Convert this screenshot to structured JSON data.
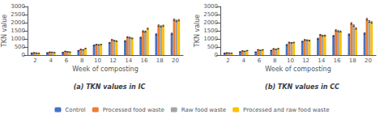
{
  "chart_data": [
    {
      "type": "bar",
      "title": "(a) TKN values in IC",
      "xlabel": "Week of composting",
      "ylabel": "TKN value",
      "categories": [
        "2",
        "4",
        "6",
        "8",
        "10",
        "12",
        "14",
        "16",
        "18",
        "20"
      ],
      "series": [
        {
          "name": "Control",
          "color": "#4472C4",
          "values": [
            120,
            140,
            160,
            270,
            600,
            760,
            870,
            1080,
            1280,
            1320
          ],
          "errors": [
            8,
            10,
            10,
            13,
            18,
            22,
            28,
            28,
            32,
            38
          ]
        },
        {
          "name": "Processed food waste",
          "color": "#ED7D31",
          "values": [
            145,
            185,
            230,
            350,
            650,
            940,
            1110,
            1470,
            1820,
            2180
          ],
          "errors": [
            10,
            12,
            13,
            16,
            22,
            28,
            32,
            38,
            42,
            48
          ]
        },
        {
          "name": "Raw food waste",
          "color": "#A5A5A5",
          "values": [
            120,
            170,
            205,
            325,
            630,
            890,
            1075,
            1450,
            1770,
            2110
          ],
          "errors": [
            8,
            11,
            12,
            14,
            20,
            25,
            30,
            35,
            40,
            45
          ]
        },
        {
          "name": "Processed and raw food waste",
          "color": "#FFC000",
          "values": [
            110,
            150,
            185,
            405,
            650,
            860,
            1030,
            1630,
            1810,
            2150
          ],
          "errors": [
            7,
            10,
            11,
            15,
            19,
            24,
            28,
            33,
            38,
            43
          ]
        }
      ],
      "ylim": [
        0,
        3000
      ],
      "yticks": [
        0,
        500,
        1000,
        1500,
        2000,
        2500,
        3000
      ],
      "grid": false,
      "legend": "bottom"
    },
    {
      "type": "bar",
      "title": "(b) TKN values in CC",
      "xlabel": "Week of composting",
      "ylabel": "TKN value",
      "categories": [
        "2",
        "4",
        "6",
        "8",
        "10",
        "12",
        "14",
        "16",
        "18",
        "20"
      ],
      "series": [
        {
          "name": "Control",
          "color": "#4472C4",
          "values": [
            115,
            200,
            185,
            285,
            635,
            835,
            1015,
            1185,
            1275,
            1335
          ],
          "errors": [
            8,
            10,
            10,
            13,
            18,
            22,
            28,
            28,
            32,
            38
          ]
        },
        {
          "name": "Processed food waste",
          "color": "#ED7D31",
          "values": [
            140,
            255,
            325,
            385,
            775,
            935,
            1245,
            1525,
            1955,
            2215
          ],
          "errors": [
            10,
            13,
            16,
            18,
            25,
            30,
            35,
            42,
            48,
            52
          ]
        },
        {
          "name": "Raw food waste",
          "color": "#A5A5A5",
          "values": [
            125,
            230,
            295,
            355,
            755,
            915,
            1195,
            1475,
            1815,
            2075
          ],
          "errors": [
            8,
            12,
            14,
            16,
            22,
            28,
            32,
            38,
            43,
            48
          ]
        },
        {
          "name": "Processed and raw food waste",
          "color": "#FFC000",
          "values": [
            110,
            275,
            325,
            395,
            775,
            895,
            1205,
            1455,
            1635,
            2015
          ],
          "errors": [
            7,
            11,
            13,
            17,
            21,
            26,
            31,
            36,
            40,
            45
          ]
        }
      ],
      "ylim": [
        0,
        3000
      ],
      "yticks": [
        0,
        500,
        1000,
        1500,
        2000,
        2500,
        3000
      ],
      "grid": false,
      "legend": "bottom"
    }
  ]
}
